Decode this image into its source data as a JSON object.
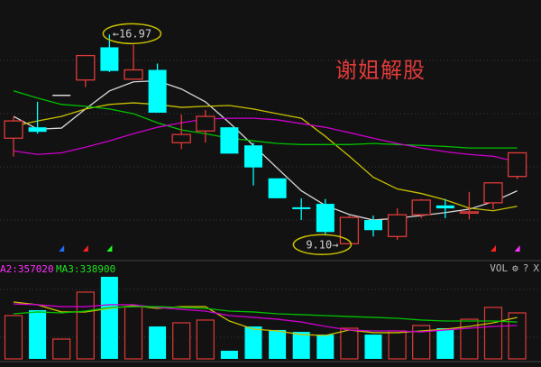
{
  "watermark": "谢姐解股",
  "volume_header": {
    "ma2_label": "A2:357020",
    "ma3_label": "MA3:338900",
    "indicator": "VOL",
    "settings_icon": "gear-icon",
    "help": "?",
    "close": "X"
  },
  "colors": {
    "up": "#e03a3a",
    "down": "#00ffff",
    "ma5": "#d8d8d8",
    "ma10": "#c8c000",
    "ma20": "#cc00cc",
    "ma60": "#00c000",
    "background": "#121212",
    "annotation": "#c8c000"
  },
  "chart_data": [
    {
      "type": "candlestick",
      "title": "",
      "ylim": [
        8.6,
        18.27
      ],
      "grid": true,
      "annotations": [
        {
          "text": "←16.97",
          "candle": 5,
          "value": 16.97
        },
        {
          "text": "9.10→",
          "candle": 15,
          "value": 9.1
        }
      ],
      "candles": [
        {
          "o": 13.07,
          "h": 13.89,
          "l": 12.38,
          "c": 13.72
        },
        {
          "o": 13.48,
          "h": 14.44,
          "l": 13.24,
          "c": 13.31
        },
        {
          "o": 14.68,
          "h": 14.68,
          "l": 14.68,
          "c": 14.68
        },
        {
          "o": 15.26,
          "h": 16.18,
          "l": 14.99,
          "c": 16.18
        },
        {
          "o": 16.49,
          "h": 16.97,
          "l": 15.56,
          "c": 15.6
        },
        {
          "o": 15.29,
          "h": 16.59,
          "l": 15.29,
          "c": 15.64
        },
        {
          "o": 15.64,
          "h": 15.88,
          "l": 14.03,
          "c": 14.03
        },
        {
          "o": 12.9,
          "h": 13.96,
          "l": 12.66,
          "c": 13.21
        },
        {
          "o": 13.34,
          "h": 14.13,
          "l": 12.9,
          "c": 13.89
        },
        {
          "o": 13.48,
          "h": 13.48,
          "l": 12.49,
          "c": 12.49
        },
        {
          "o": 12.8,
          "h": 12.9,
          "l": 11.29,
          "c": 11.97
        },
        {
          "o": 11.56,
          "h": 11.56,
          "l": 10.81,
          "c": 10.81
        },
        {
          "o": 10.47,
          "h": 10.81,
          "l": 9.99,
          "c": 10.4
        },
        {
          "o": 10.6,
          "h": 10.78,
          "l": 9.44,
          "c": 9.54
        },
        {
          "o": 9.1,
          "h": 10.16,
          "l": 9.1,
          "c": 10.09
        },
        {
          "o": 9.99,
          "h": 10.16,
          "l": 9.37,
          "c": 9.61
        },
        {
          "o": 9.37,
          "h": 10.43,
          "l": 9.24,
          "c": 10.19
        },
        {
          "o": 10.19,
          "h": 10.78,
          "l": 10.06,
          "c": 10.74
        },
        {
          "o": 10.54,
          "h": 10.78,
          "l": 10.06,
          "c": 10.43
        },
        {
          "o": 10.26,
          "h": 11.05,
          "l": 10.02,
          "c": 10.3
        },
        {
          "o": 10.64,
          "h": 11.39,
          "l": 10.4,
          "c": 11.39
        },
        {
          "o": 11.63,
          "h": 12.52,
          "l": 11.53,
          "c": 12.52
        }
      ],
      "series": [
        {
          "key": "ma5",
          "values": [
            13.89,
            13.41,
            13.45,
            14.17,
            14.85,
            15.19,
            15.23,
            14.92,
            14.44,
            13.65,
            12.8,
            11.94,
            11.09,
            10.54,
            10.2,
            9.99,
            10.06,
            10.16,
            10.27,
            10.4,
            10.68,
            11.09
          ]
        },
        {
          "key": "ma10",
          "values": [
            13.52,
            13.72,
            13.89,
            14.17,
            14.34,
            14.4,
            14.34,
            14.23,
            14.27,
            14.3,
            14.17,
            13.99,
            13.82,
            13.14,
            12.39,
            11.6,
            11.16,
            10.99,
            10.75,
            10.44,
            10.34,
            10.51
          ]
        },
        {
          "key": "ma60",
          "values": [
            14.85,
            14.58,
            14.34,
            14.27,
            14.17,
            13.99,
            13.65,
            13.38,
            13.24,
            13.07,
            12.97,
            12.87,
            12.83,
            12.83,
            12.83,
            12.87,
            12.83,
            12.8,
            12.76,
            12.7,
            12.7,
            12.7
          ]
        },
        {
          "key": "ma20",
          "values": [
            12.59,
            12.46,
            12.52,
            12.73,
            12.97,
            13.24,
            13.48,
            13.65,
            13.79,
            13.82,
            13.82,
            13.76,
            13.62,
            13.48,
            13.28,
            13.07,
            12.87,
            12.7,
            12.56,
            12.46,
            12.39,
            12.18
          ]
        }
      ],
      "signals": [
        {
          "candle": 3,
          "color": "#1e6fff"
        },
        {
          "candle": 4,
          "color": "#ff2020"
        },
        {
          "candle": 5,
          "color": "#20ff20"
        },
        {
          "candle": 21,
          "color": "#ff2020"
        },
        {
          "candle": 22,
          "color": "#ff30ff"
        }
      ]
    },
    {
      "type": "bar",
      "title": "VOL",
      "values": [
        319000,
        359000,
        146000,
        492000,
        605000,
        385000,
        239000,
        266000,
        286000,
        60000,
        239000,
        213000,
        199000,
        179000,
        226000,
        179000,
        206000,
        246000,
        226000,
        292000,
        379000,
        339000
      ],
      "series": [
        {
          "key": "ma10",
          "values": [
            419000,
            399000,
            346000,
            346000,
            372000,
            392000,
            372000,
            385000,
            385000,
            279000,
            219000,
            206000,
            179000,
            173000,
            213000,
            193000,
            193000,
            206000,
            219000,
            239000,
            266000,
            306000
          ]
        },
        {
          "key": "ma20",
          "values": [
            405000,
            399000,
            385000,
            385000,
            399000,
            399000,
            379000,
            365000,
            352000,
            319000,
            306000,
            292000,
            272000,
            239000,
            213000,
            206000,
            206000,
            199000,
            213000,
            226000,
            239000,
            246000
          ]
        },
        {
          "key": "ma60",
          "values": [
            332000,
            346000,
            339000,
            352000,
            379000,
            385000,
            385000,
            379000,
            372000,
            352000,
            346000,
            332000,
            326000,
            319000,
            312000,
            306000,
            299000,
            286000,
            279000,
            279000,
            279000,
            272000
          ]
        }
      ]
    }
  ]
}
